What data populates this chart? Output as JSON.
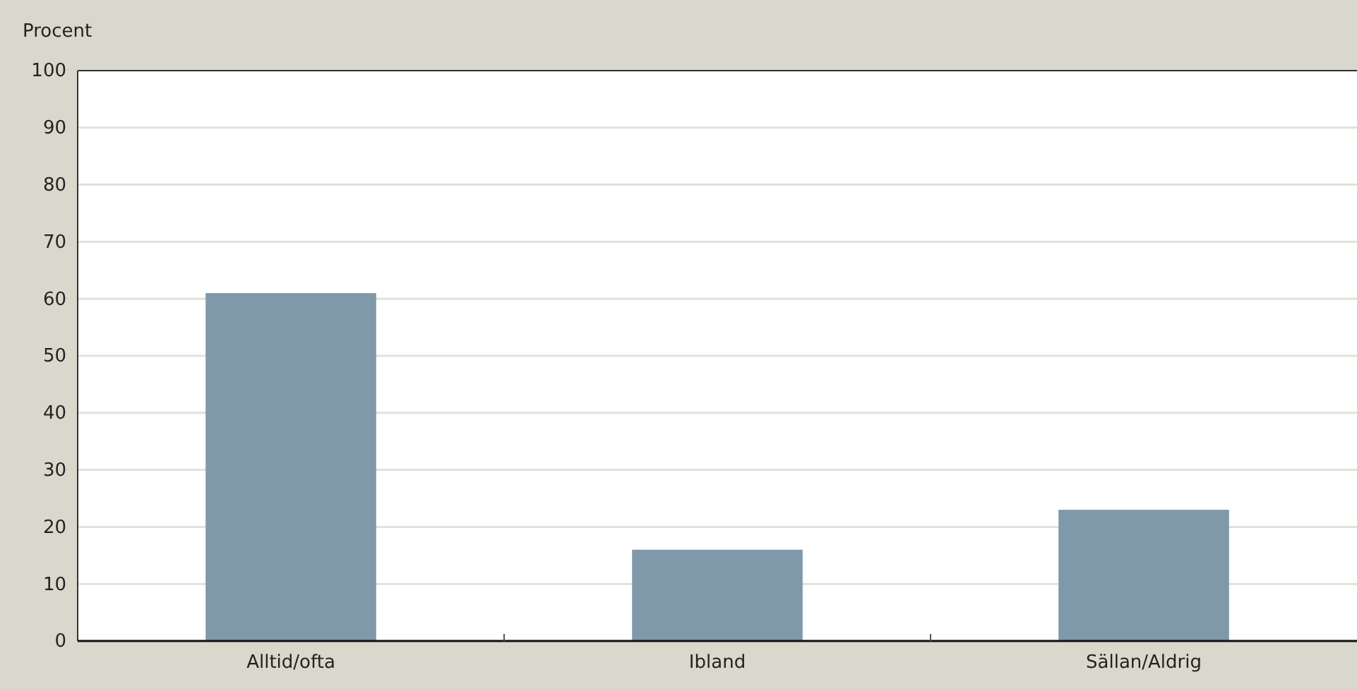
{
  "chart_data": {
    "type": "bar",
    "ylabel": "Procent",
    "categories": [
      "Alltid/ofta",
      "Ibland",
      "Sällan/Aldrig"
    ],
    "values": [
      61,
      16,
      23
    ],
    "color": "#7f99aa",
    "ylim": [
      0,
      100
    ],
    "yticks": [
      0,
      10,
      20,
      30,
      40,
      50,
      60,
      70,
      80,
      90,
      100
    ],
    "grid": "y"
  }
}
